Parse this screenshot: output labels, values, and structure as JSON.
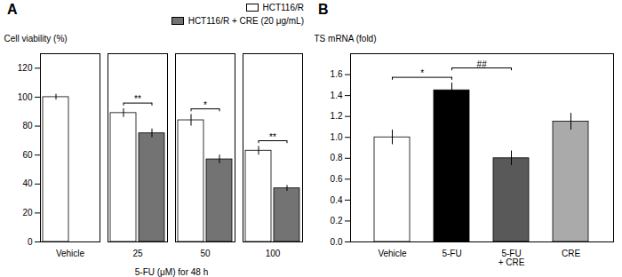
{
  "chart_data": [
    {
      "type": "bar",
      "title": "A",
      "categories": [
        "Vehicle",
        "25",
        "50",
        "100"
      ],
      "series": [
        {
          "name": "HCT116/R",
          "color": "#ffffff",
          "values": [
            100,
            89,
            84,
            63
          ],
          "errors": [
            2,
            3,
            4,
            3
          ]
        },
        {
          "name": "HCT116/R + CRE (20 μg/mL)",
          "color": "#737373",
          "values": [
            null,
            75,
            57,
            37
          ],
          "errors": [
            null,
            3,
            3,
            2
          ]
        }
      ],
      "xlabel": "5-FU (μM) for 48 h",
      "ylabel": "Cell viability (%)",
      "ylim": [
        0,
        130
      ],
      "yticks": [
        0,
        20,
        40,
        60,
        80,
        100,
        120
      ],
      "annotations": [
        {
          "text": "**",
          "category": "25"
        },
        {
          "text": "*",
          "category": "50"
        },
        {
          "text": "**",
          "category": "100"
        }
      ],
      "legend": "upper right",
      "grid": false
    },
    {
      "type": "bar",
      "title": "B",
      "categories": [
        "Vehicle",
        "5-FU",
        "5-FU\n+ CRE",
        "CRE"
      ],
      "values": [
        1.0,
        1.45,
        0.8,
        1.15
      ],
      "errors": [
        0.07,
        0.07,
        0.07,
        0.08
      ],
      "colors": [
        "#ffffff",
        "#000000",
        "#595959",
        "#aaaaaa"
      ],
      "ylabel": "TS mRNA (fold)",
      "ylim": [
        0,
        1.8
      ],
      "yticks": [
        {
          "value": 0,
          "label": "0.0"
        },
        0.2,
        0.4,
        0.6,
        0.8,
        {
          "value": 1.0,
          "label": "1.0"
        },
        1.2,
        1.4,
        1.6
      ],
      "annotations": [
        {
          "text": "*",
          "from": "Vehicle",
          "to": "5-FU"
        },
        {
          "text": "##",
          "from": "5-FU",
          "to": "5-FU\n+ CRE"
        }
      ],
      "grid": false
    }
  ]
}
